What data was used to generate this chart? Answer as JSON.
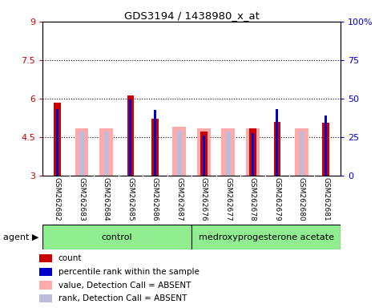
{
  "title": "GDS3194 / 1438980_x_at",
  "samples": [
    "GSM262682",
    "GSM262683",
    "GSM262684",
    "GSM262685",
    "GSM262686",
    "GSM262687",
    "GSM262676",
    "GSM262677",
    "GSM262678",
    "GSM262679",
    "GSM262680",
    "GSM262681"
  ],
  "red_values": [
    5.85,
    0,
    0,
    6.12,
    5.2,
    0,
    4.72,
    0,
    4.85,
    5.1,
    0,
    5.05
  ],
  "blue_values": [
    5.6,
    0,
    0,
    5.95,
    5.55,
    0,
    4.55,
    0,
    4.65,
    5.6,
    0,
    5.35
  ],
  "pink_values": [
    0,
    4.85,
    4.85,
    0,
    0,
    4.9,
    4.85,
    4.85,
    4.85,
    0,
    4.85,
    0
  ],
  "lav_values": [
    0,
    4.72,
    4.72,
    0,
    0,
    4.75,
    4.72,
    4.72,
    0,
    0,
    4.72,
    0
  ],
  "ylim_left": [
    3,
    9
  ],
  "yticks_left": [
    3,
    4.5,
    6,
    7.5,
    9
  ],
  "ytick_labels_left": [
    "3",
    "4.5",
    "6",
    "7.5",
    "9"
  ],
  "yticks_right": [
    0,
    25,
    50,
    75,
    100
  ],
  "ytick_labels_right": [
    "0",
    "25",
    "50",
    "75",
    "100%"
  ],
  "hlines": [
    4.5,
    6.0,
    7.5
  ],
  "control_label": "control",
  "treatment_label": "medroxyprogesterone acetate",
  "agent_label": "agent",
  "legend_items": [
    {
      "color": "#cc0000",
      "label": "count"
    },
    {
      "color": "#0000cc",
      "label": "percentile rank within the sample"
    },
    {
      "color": "#ffaaaa",
      "label": "value, Detection Call = ABSENT"
    },
    {
      "color": "#bbbbdd",
      "label": "rank, Detection Call = ABSENT"
    }
  ],
  "control_count": 6,
  "treatment_count": 6,
  "bg_color": "#ffffff",
  "grey_bg": "#cccccc"
}
